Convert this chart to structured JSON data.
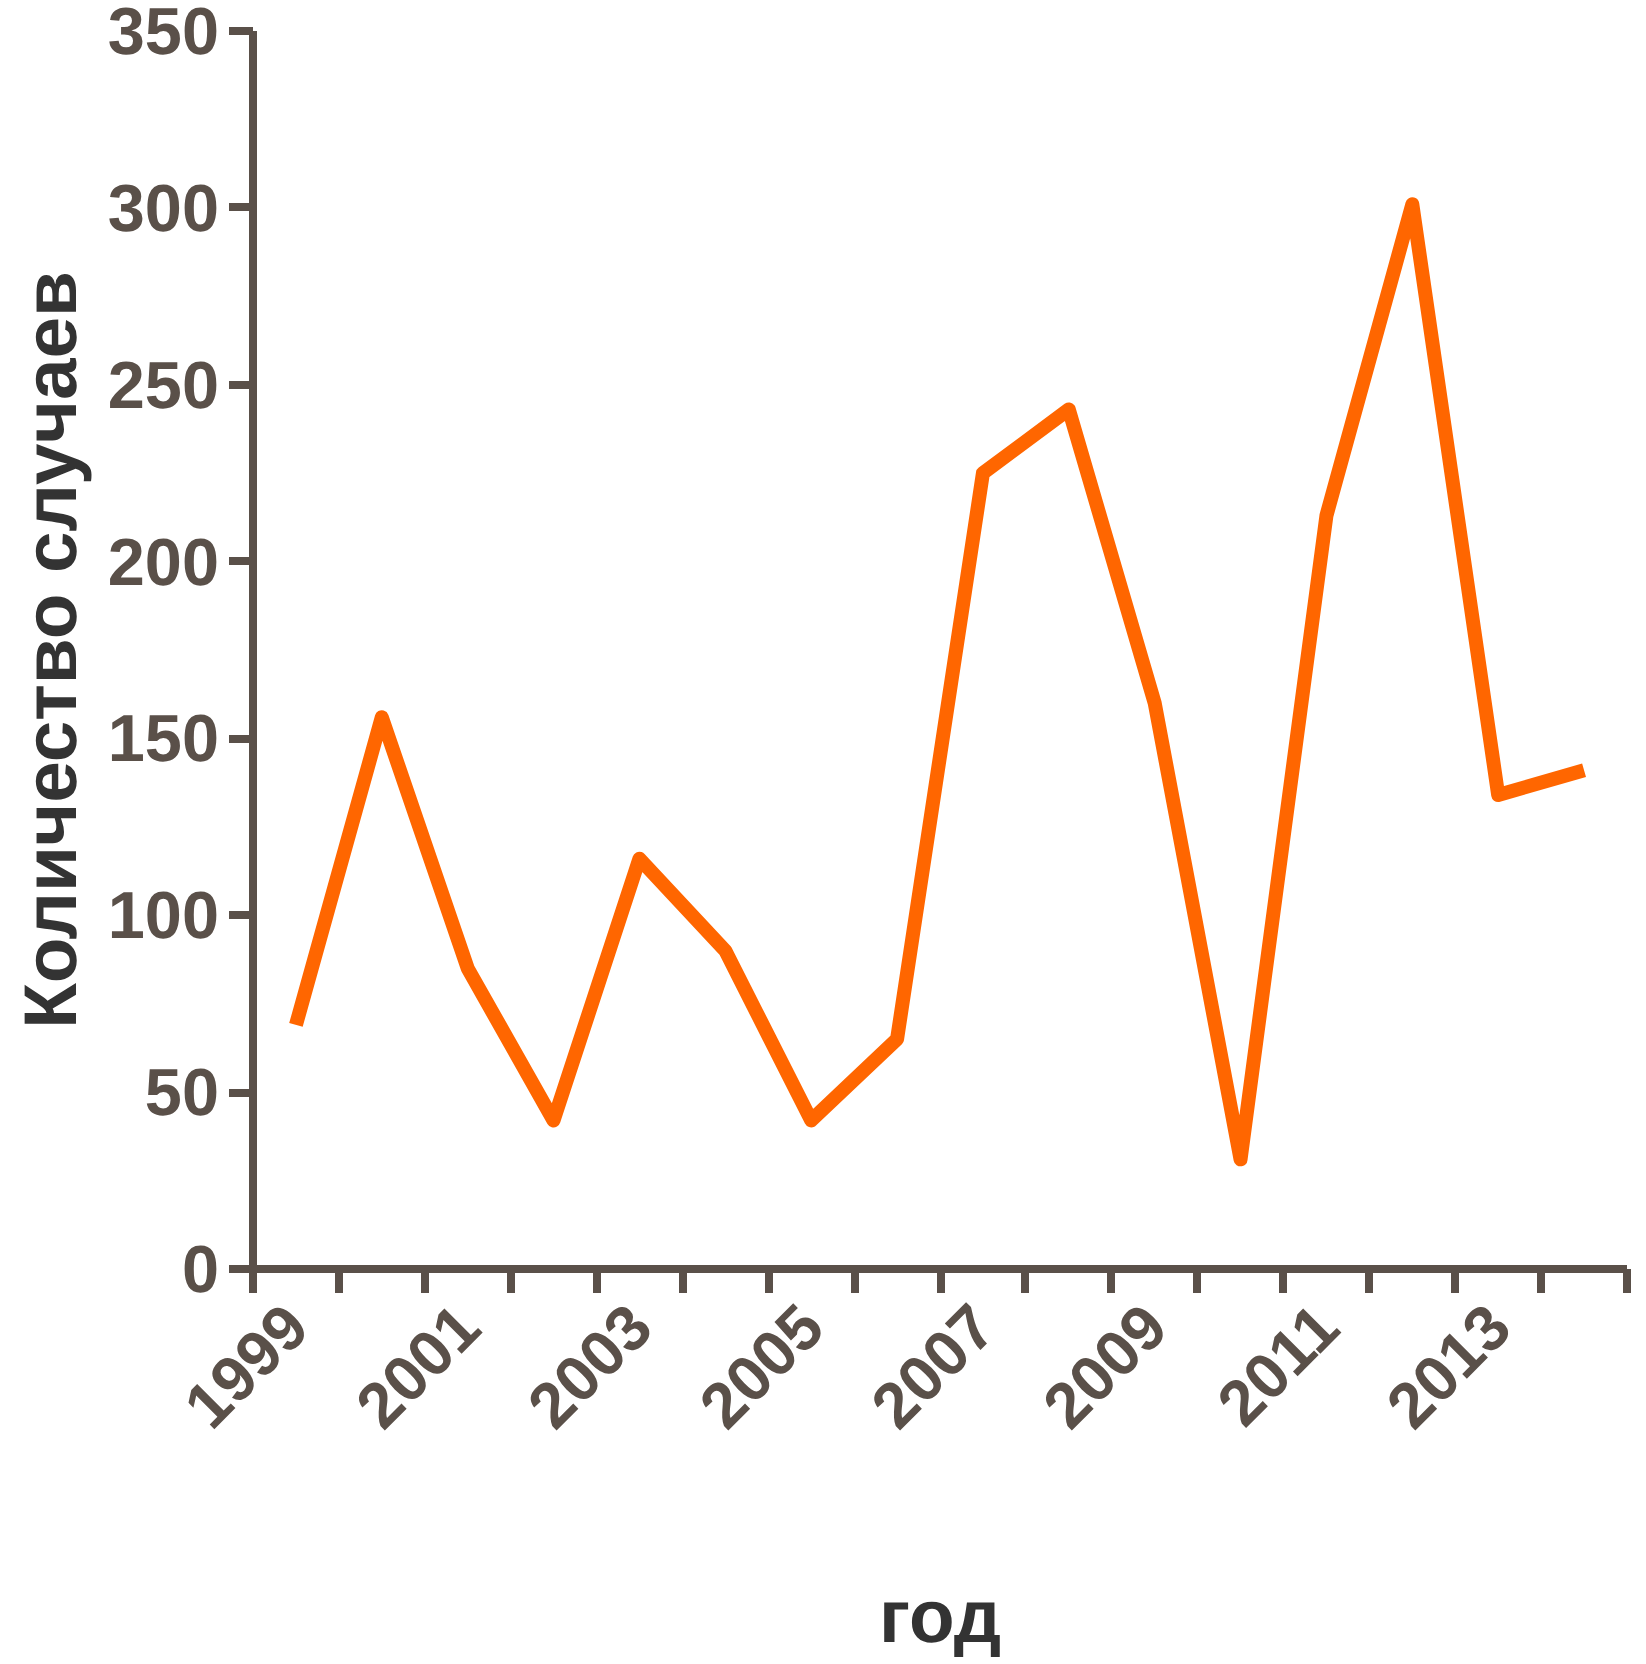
{
  "chart_data": {
    "type": "line",
    "xlabel": "год",
    "ylabel": "Количество случаев",
    "categories": [
      "1999",
      null,
      "2001",
      null,
      "2003",
      null,
      "2005",
      null,
      "2007",
      null,
      "2009",
      null,
      "2011",
      null,
      "2013",
      null
    ],
    "series": [
      {
        "color": "#ff6600",
        "values": [
          69,
          156,
          85,
          42,
          116,
          90,
          42,
          65,
          225,
          243,
          160,
          31,
          213,
          301,
          134,
          141
        ]
      }
    ],
    "ylim": [
      0,
      350
    ],
    "yticks": [
      0,
      50,
      100,
      150,
      200,
      250,
      300,
      350
    ],
    "grid": false,
    "marker": "none",
    "line_style": "solid"
  }
}
